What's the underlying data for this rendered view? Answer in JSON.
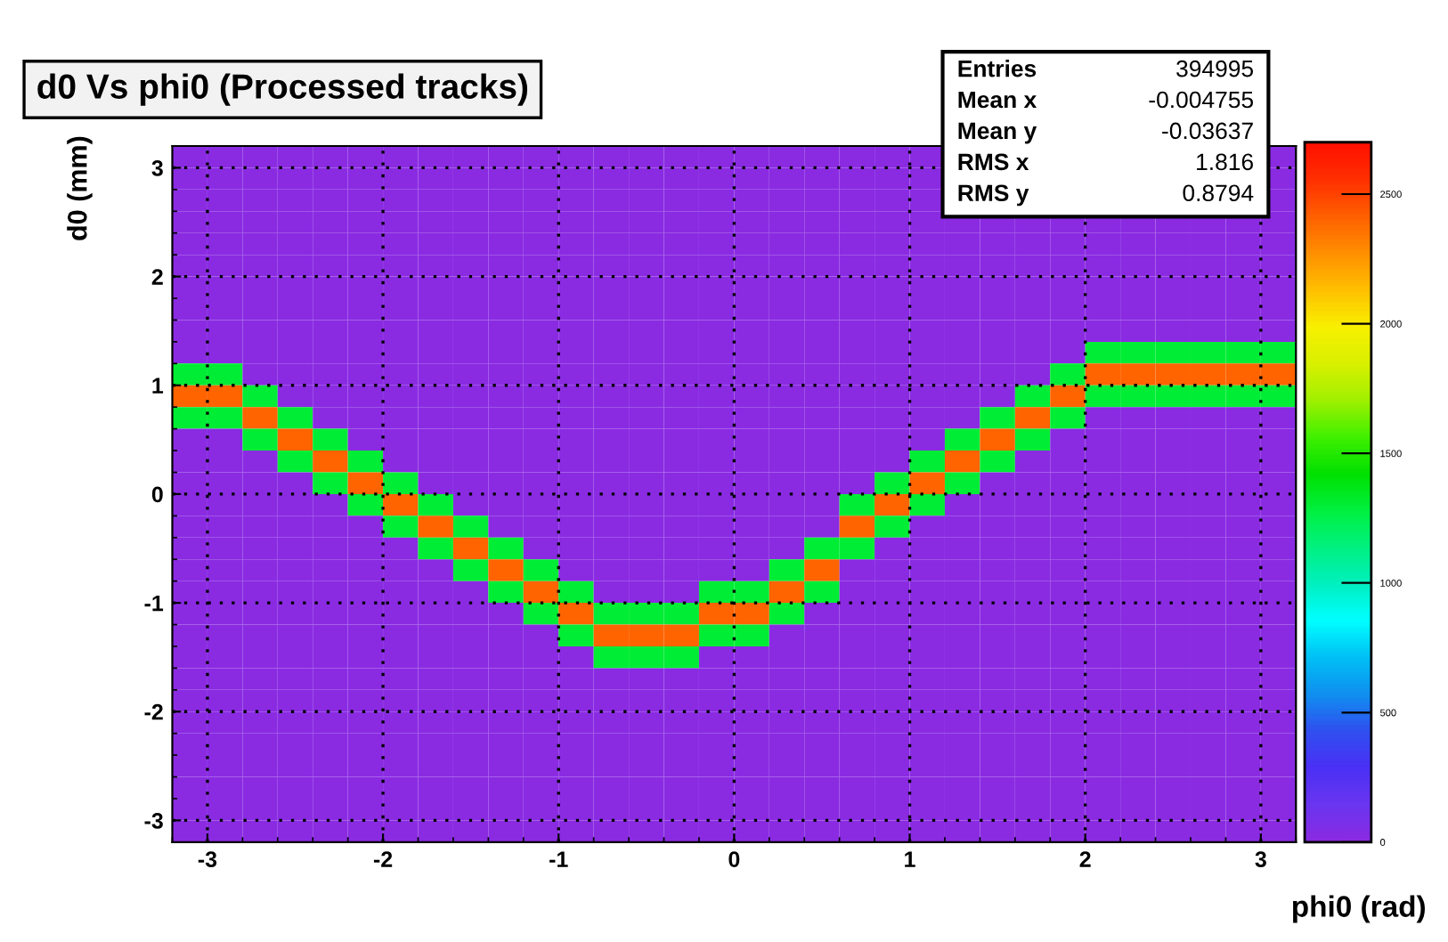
{
  "chart_data": {
    "type": "heatmap",
    "title": "d0 Vs phi0 (Processed tracks)",
    "xlabel": "phi0 (rad)",
    "ylabel": "d0 (mm)",
    "annotations": [
      "Entries",
      "394995",
      "Mean x",
      "-0.004755",
      "Mean y",
      "-0.03637",
      "RMS x",
      "1.816",
      "RMS y",
      "0.8794"
    ],
    "x": [
      -3.1,
      -2.9,
      -2.7,
      -2.5,
      -2.3,
      -2.1,
      -1.9,
      -1.7,
      -1.5,
      -1.3,
      -1.1,
      -0.9,
      -0.7,
      -0.5,
      -0.3,
      -0.1,
      0.1,
      0.3,
      0.5,
      0.7,
      0.9,
      1.1,
      1.3,
      1.5,
      1.7,
      1.9,
      2.1,
      2.3,
      2.5,
      2.7,
      2.9,
      3.1
    ],
    "y": [
      3.1,
      2.9,
      2.7,
      2.5,
      2.3,
      2.1,
      1.9,
      1.7,
      1.5,
      1.3,
      1.1,
      0.9,
      0.7,
      0.5,
      0.3,
      0.1,
      -0.1,
      -0.3,
      -0.5,
      -0.7,
      -0.9,
      -1.1,
      -1.3,
      -1.5,
      -1.7,
      -1.9,
      -2.1,
      -2.3,
      -2.5,
      -2.7,
      -2.9,
      -3.1
    ],
    "cells": [
      [
        0,
        0,
        0,
        0,
        0,
        0,
        0,
        0,
        0,
        0,
        0,
        0,
        0,
        0,
        0,
        0,
        0,
        0,
        0,
        0,
        0,
        0,
        null,
        null,
        null,
        null,
        null,
        null,
        null,
        null,
        null,
        0
      ],
      [
        0,
        0,
        0,
        0,
        0,
        0,
        0,
        0,
        0,
        0,
        0,
        0,
        0,
        0,
        0,
        0,
        0,
        0,
        0,
        0,
        0,
        0,
        null,
        null,
        null,
        null,
        null,
        null,
        null,
        null,
        null,
        0
      ],
      [
        0,
        0,
        0,
        0,
        0,
        0,
        0,
        0,
        0,
        0,
        0,
        0,
        0,
        0,
        0,
        0,
        0,
        0,
        0,
        0,
        0,
        0,
        null,
        null,
        null,
        null,
        null,
        null,
        null,
        null,
        null,
        0
      ],
      [
        0,
        0,
        0,
        0,
        0,
        0,
        0,
        0,
        0,
        0,
        0,
        0,
        0,
        0,
        0,
        0,
        0,
        0,
        0,
        0,
        0,
        0,
        0,
        0,
        0,
        0,
        0,
        0,
        0,
        0,
        0,
        0
      ],
      [
        0,
        0,
        0,
        0,
        0,
        0,
        0,
        0,
        0,
        0,
        0,
        0,
        0,
        0,
        0,
        0,
        0,
        0,
        0,
        0,
        0,
        0,
        0,
        0,
        0,
        0,
        0,
        0,
        0,
        0,
        0,
        0
      ],
      [
        0,
        0,
        0,
        0,
        0,
        0,
        0,
        0,
        0,
        0,
        0,
        0,
        0,
        0,
        0,
        0,
        0,
        0,
        0,
        0,
        0,
        0,
        0,
        0,
        0,
        0,
        0,
        0,
        0,
        0,
        0,
        0
      ],
      [
        0,
        0,
        0,
        0,
        0,
        0,
        0,
        0,
        0,
        0,
        0,
        0,
        0,
        0,
        0,
        0,
        0,
        0,
        0,
        0,
        0,
        0,
        0,
        0,
        0,
        0,
        0,
        0,
        0,
        0,
        0,
        0
      ],
      [
        0,
        0,
        0,
        0,
        0,
        0,
        0,
        0,
        0,
        0,
        0,
        0,
        0,
        0,
        0,
        0,
        0,
        0,
        0,
        0,
        0,
        0,
        0,
        0,
        0,
        0,
        0,
        0,
        0,
        0,
        0,
        0
      ],
      [
        0,
        0,
        0,
        0,
        0,
        0,
        0,
        0,
        0,
        0,
        0,
        0,
        0,
        0,
        0,
        0,
        0,
        0,
        0,
        0,
        0,
        0,
        0,
        0,
        0,
        0,
        0,
        0,
        0,
        0,
        0,
        0
      ],
      [
        0,
        0,
        0,
        0,
        0,
        0,
        0,
        0,
        0,
        0,
        0,
        0,
        0,
        0,
        0,
        0,
        0,
        0,
        0,
        0,
        0,
        0,
        0,
        0,
        0,
        0,
        1300,
        1300,
        1300,
        1300,
        1300,
        1300
      ],
      [
        1300,
        1300,
        0,
        0,
        0,
        0,
        0,
        0,
        0,
        0,
        0,
        0,
        0,
        0,
        0,
        0,
        0,
        0,
        0,
        0,
        0,
        0,
        0,
        0,
        0,
        1300,
        2400,
        2400,
        2400,
        2400,
        2400,
        2400
      ],
      [
        2400,
        2400,
        1300,
        0,
        0,
        0,
        0,
        0,
        0,
        0,
        0,
        0,
        0,
        0,
        0,
        0,
        0,
        0,
        0,
        0,
        0,
        0,
        0,
        0,
        1300,
        2400,
        1300,
        1300,
        1300,
        1300,
        1300,
        1300
      ],
      [
        1300,
        1300,
        2400,
        1300,
        0,
        0,
        0,
        0,
        0,
        0,
        0,
        0,
        0,
        0,
        0,
        0,
        0,
        0,
        0,
        0,
        0,
        0,
        0,
        1300,
        2400,
        1300,
        0,
        0,
        0,
        0,
        0,
        0
      ],
      [
        0,
        0,
        1300,
        2400,
        1300,
        0,
        0,
        0,
        0,
        0,
        0,
        0,
        0,
        0,
        0,
        0,
        0,
        0,
        0,
        0,
        0,
        0,
        1300,
        2400,
        1300,
        0,
        0,
        0,
        0,
        0,
        0,
        0
      ],
      [
        0,
        0,
        0,
        1300,
        2400,
        1300,
        0,
        0,
        0,
        0,
        0,
        0,
        0,
        0,
        0,
        0,
        0,
        0,
        0,
        0,
        0,
        1300,
        2400,
        1300,
        0,
        0,
        0,
        0,
        0,
        0,
        0,
        0
      ],
      [
        0,
        0,
        0,
        0,
        1300,
        2400,
        1300,
        0,
        0,
        0,
        0,
        0,
        0,
        0,
        0,
        0,
        0,
        0,
        0,
        0,
        1300,
        2400,
        1300,
        0,
        0,
        0,
        0,
        0,
        0,
        0,
        0,
        0
      ],
      [
        0,
        0,
        0,
        0,
        0,
        1300,
        2400,
        1300,
        0,
        0,
        0,
        0,
        0,
        0,
        0,
        0,
        0,
        0,
        0,
        1300,
        2400,
        1300,
        0,
        0,
        0,
        0,
        0,
        0,
        0,
        0,
        0,
        0
      ],
      [
        0,
        0,
        0,
        0,
        0,
        0,
        1300,
        2400,
        1300,
        0,
        0,
        0,
        0,
        0,
        0,
        0,
        0,
        0,
        0,
        2400,
        1300,
        0,
        0,
        0,
        0,
        0,
        0,
        0,
        0,
        0,
        0,
        0
      ],
      [
        0,
        0,
        0,
        0,
        0,
        0,
        0,
        1300,
        2400,
        1300,
        0,
        0,
        0,
        0,
        0,
        0,
        0,
        0,
        1300,
        1300,
        0,
        0,
        0,
        0,
        0,
        0,
        0,
        0,
        0,
        0,
        0,
        0
      ],
      [
        0,
        0,
        0,
        0,
        0,
        0,
        0,
        0,
        1300,
        2400,
        1300,
        0,
        0,
        0,
        0,
        0,
        0,
        1300,
        2400,
        0,
        0,
        0,
        0,
        0,
        0,
        0,
        0,
        0,
        0,
        0,
        0,
        0
      ],
      [
        0,
        0,
        0,
        0,
        0,
        0,
        0,
        0,
        0,
        1300,
        2400,
        1300,
        0,
        0,
        0,
        1300,
        1300,
        2400,
        1300,
        0,
        0,
        0,
        0,
        0,
        0,
        0,
        0,
        0,
        0,
        0,
        0,
        0
      ],
      [
        0,
        0,
        0,
        0,
        0,
        0,
        0,
        0,
        0,
        0,
        1300,
        2400,
        1300,
        1300,
        1300,
        2400,
        2400,
        1300,
        0,
        0,
        0,
        0,
        0,
        0,
        0,
        0,
        0,
        0,
        0,
        0,
        0,
        0
      ],
      [
        0,
        0,
        0,
        0,
        0,
        0,
        0,
        0,
        0,
        0,
        0,
        1300,
        2400,
        2400,
        2400,
        1300,
        1300,
        0,
        0,
        0,
        0,
        0,
        0,
        0,
        0,
        0,
        0,
        0,
        0,
        0,
        0,
        0
      ],
      [
        0,
        0,
        0,
        0,
        0,
        0,
        0,
        0,
        0,
        0,
        0,
        0,
        1300,
        1300,
        1300,
        0,
        0,
        0,
        0,
        0,
        0,
        0,
        0,
        0,
        0,
        0,
        0,
        0,
        0,
        0,
        0,
        0
      ],
      [
        0,
        0,
        0,
        0,
        0,
        0,
        0,
        0,
        0,
        0,
        0,
        0,
        0,
        0,
        0,
        0,
        0,
        0,
        0,
        0,
        0,
        0,
        0,
        0,
        0,
        0,
        0,
        0,
        0,
        0,
        0,
        0
      ],
      [
        0,
        0,
        0,
        0,
        0,
        0,
        0,
        0,
        0,
        0,
        0,
        0,
        0,
        0,
        0,
        0,
        0,
        0,
        0,
        0,
        0,
        0,
        0,
        0,
        0,
        0,
        0,
        0,
        0,
        0,
        0,
        0
      ],
      [
        0,
        0,
        0,
        0,
        0,
        0,
        0,
        0,
        0,
        0,
        0,
        0,
        0,
        0,
        0,
        0,
        0,
        0,
        0,
        0,
        0,
        0,
        0,
        0,
        0,
        0,
        0,
        0,
        0,
        0,
        0,
        0
      ],
      [
        0,
        0,
        0,
        0,
        0,
        0,
        0,
        0,
        0,
        0,
        0,
        0,
        0,
        0,
        0,
        0,
        0,
        0,
        0,
        0,
        0,
        0,
        0,
        0,
        0,
        0,
        0,
        0,
        0,
        0,
        0,
        0
      ],
      [
        0,
        0,
        0,
        0,
        0,
        0,
        0,
        0,
        0,
        0,
        0,
        0,
        0,
        0,
        0,
        0,
        0,
        0,
        0,
        0,
        0,
        0,
        0,
        0,
        0,
        0,
        0,
        0,
        0,
        0,
        0,
        0
      ],
      [
        0,
        0,
        0,
        0,
        0,
        0,
        0,
        0,
        0,
        0,
        0,
        0,
        0,
        0,
        0,
        0,
        0,
        0,
        0,
        0,
        0,
        0,
        0,
        0,
        0,
        0,
        0,
        0,
        0,
        0,
        0,
        0
      ],
      [
        0,
        0,
        0,
        0,
        0,
        0,
        0,
        0,
        0,
        0,
        0,
        0,
        0,
        0,
        0,
        0,
        0,
        0,
        0,
        0,
        0,
        0,
        0,
        0,
        0,
        0,
        0,
        0,
        0,
        0,
        0,
        0
      ],
      [
        0,
        0,
        0,
        0,
        0,
        0,
        0,
        0,
        0,
        0,
        0,
        0,
        0,
        0,
        0,
        0,
        0,
        0,
        0,
        0,
        0,
        0,
        0,
        0,
        0,
        0,
        0,
        0,
        0,
        0,
        0,
        0
      ]
    ],
    "xlim": [
      -3.2,
      3.2
    ],
    "ylim": [
      -3.2,
      3.2
    ],
    "xticks": [
      -3,
      -2,
      -1,
      0,
      1,
      2,
      3
    ],
    "yticks": [
      -3,
      -2,
      -1,
      0,
      1,
      2,
      3
    ],
    "clim": [
      0,
      2700
    ],
    "cticks": [
      0,
      500,
      1000,
      1500,
      2000,
      2500
    ],
    "grid": true
  }
}
